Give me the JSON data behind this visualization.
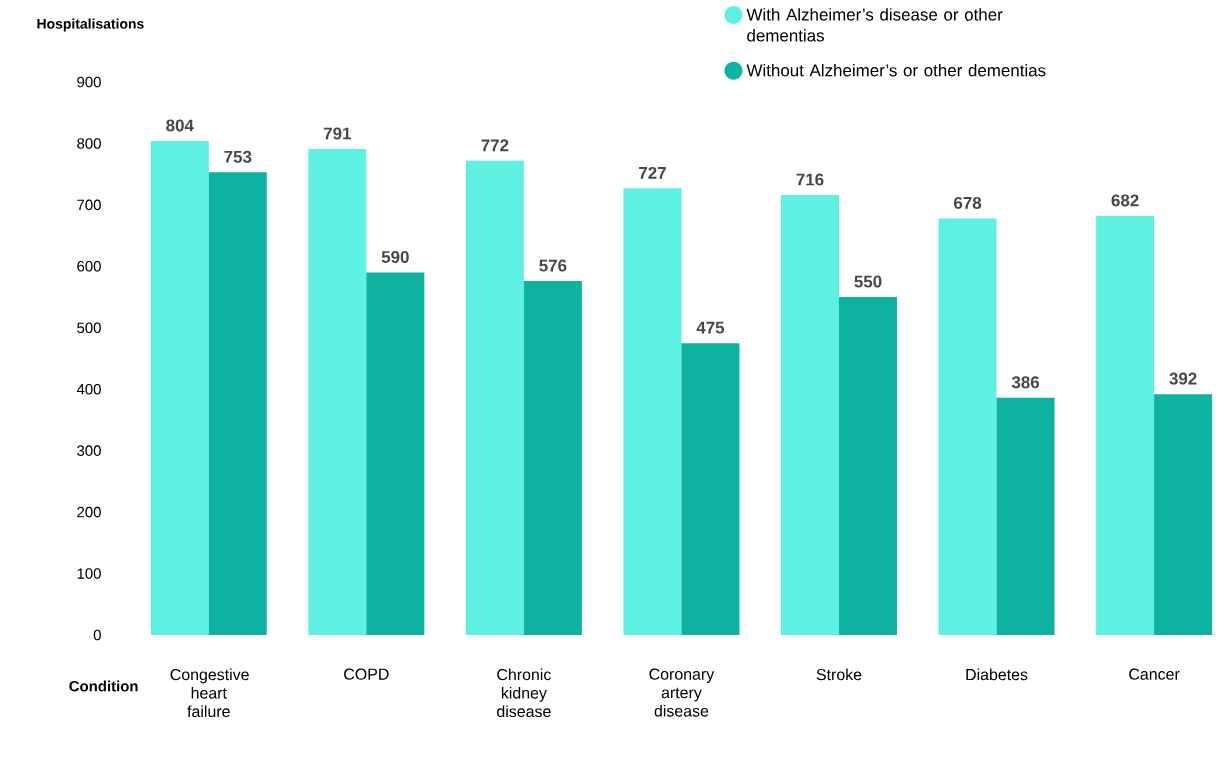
{
  "chart_data": {
    "type": "bar",
    "ylabel": "Hospitalisations",
    "xlabel": "Condition",
    "categories": [
      "Congestive heart failure",
      "COPD",
      "Chronic kidney disease",
      "Coronary artery disease",
      "Stroke",
      "Diabetes",
      "Cancer"
    ],
    "series": [
      {
        "name": "With Alzheimer’s disease or other dementias",
        "color": "#5ef0e0",
        "values": [
          804,
          791,
          772,
          727,
          716,
          678,
          682
        ]
      },
      {
        "name": "Without Alzheimer’s or other dementias",
        "color": "#0db3a0",
        "values": [
          753,
          590,
          576,
          475,
          550,
          386,
          392
        ]
      }
    ],
    "ylim": [
      0,
      900
    ],
    "yticks": [
      0,
      100,
      200,
      300,
      400,
      500,
      600,
      700,
      800,
      900
    ],
    "data_labels": true,
    "legend": "top right"
  }
}
